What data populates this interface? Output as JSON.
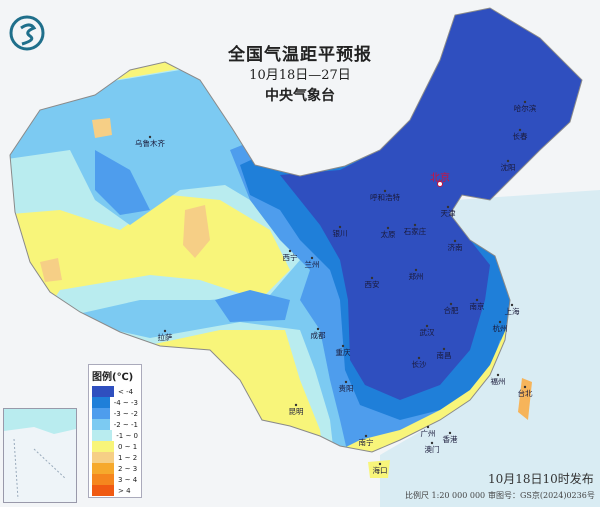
{
  "header": {
    "title": "全国气温距平预报",
    "date_range": "10月18日—27日",
    "issuer": "中央气象台",
    "logo_icon": "cma-dragon-logo"
  },
  "legend": {
    "title": "图例(℃)",
    "items": [
      {
        "label": "< -4",
        "color": "#2f4fbf"
      },
      {
        "label": "-4 ~ -3",
        "color": "#1f7fd9"
      },
      {
        "label": "-3 ~ -2",
        "color": "#4e9ded"
      },
      {
        "label": "-2 ~ -1",
        "color": "#7ccaf2"
      },
      {
        "label": "-1 ~ 0",
        "color": "#b9ecef"
      },
      {
        "label": "0 ~ 1",
        "color": "#f8f57a"
      },
      {
        "label": "1 ~ 2",
        "color": "#f6cf86"
      },
      {
        "label": "2 ~ 3",
        "color": "#f6a92c"
      },
      {
        "label": "3 ~ 4",
        "color": "#f5861e"
      },
      {
        "label": "> 4",
        "color": "#f05a12"
      }
    ]
  },
  "cities": [
    {
      "name": "乌鲁木齐"
    },
    {
      "name": "哈尔滨"
    },
    {
      "name": "长春"
    },
    {
      "name": "沈阳"
    },
    {
      "name": "呼和浩特"
    },
    {
      "name": "北京",
      "capital": true
    },
    {
      "name": "天津"
    },
    {
      "name": "石家庄"
    },
    {
      "name": "太原"
    },
    {
      "name": "济南"
    },
    {
      "name": "银川"
    },
    {
      "name": "西宁"
    },
    {
      "name": "兰州"
    },
    {
      "name": "西安"
    },
    {
      "name": "郑州"
    },
    {
      "name": "合肥"
    },
    {
      "name": "南京"
    },
    {
      "name": "上海"
    },
    {
      "name": "武汉"
    },
    {
      "name": "杭州"
    },
    {
      "name": "南昌"
    },
    {
      "name": "长沙"
    },
    {
      "name": "成都"
    },
    {
      "name": "重庆"
    },
    {
      "name": "贵阳"
    },
    {
      "name": "昆明"
    },
    {
      "name": "拉萨"
    },
    {
      "name": "福州"
    },
    {
      "name": "台北"
    },
    {
      "name": "广州"
    },
    {
      "name": "香港"
    },
    {
      "name": "澳门"
    },
    {
      "name": "南宁"
    },
    {
      "name": "海口"
    }
  ],
  "footer": {
    "published": "10月18日10时发布",
    "scale": "比例尺 1:20 000 000",
    "map_approval": "审图号：GS京(2024)0236号"
  },
  "colors": {
    "sea": "#d9ecf3",
    "capital_label": "#d0103a"
  }
}
